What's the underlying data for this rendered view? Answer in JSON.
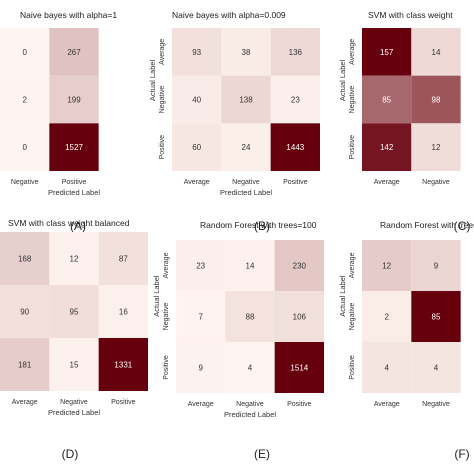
{
  "chart_data": [
    {
      "type": "heatmap",
      "title": "Naive bayes with alpha=1",
      "xticklabels": [
        "Negative",
        "Positive"
      ],
      "yticklabels": [],
      "xlabel": "Predicted Label",
      "ylabel": "",
      "visible_columns": 2,
      "values": [
        [
          0,
          267
        ],
        [
          2,
          199
        ],
        [
          0,
          1527
        ]
      ],
      "panel_label": "(A)"
    },
    {
      "type": "heatmap",
      "title": "Naive bayes with alpha=0.009",
      "xticklabels": [
        "Average",
        "Negative",
        "Positive"
      ],
      "yticklabels": [
        "Average",
        "Negative",
        "Positive"
      ],
      "xlabel": "Predicted Label",
      "ylabel": "Actual Label",
      "visible_columns": 3,
      "values": [
        [
          93,
          38,
          136
        ],
        [
          40,
          138,
          23
        ],
        [
          60,
          24,
          1443
        ]
      ],
      "panel_label": "(B)"
    },
    {
      "type": "heatmap",
      "title": "SVM with class weight",
      "xticklabels": [
        "Average",
        "Negative"
      ],
      "yticklabels": [
        "Average",
        "Negative",
        "Positive"
      ],
      "xlabel": "",
      "ylabel": "Actual Label",
      "visible_columns": 2,
      "values": [
        [
          157,
          14
        ],
        [
          85,
          98
        ],
        [
          142,
          12
        ]
      ],
      "panel_label": "(C)"
    },
    {
      "type": "heatmap",
      "title": "SVM with class weight balanced",
      "xticklabels": [
        "Average",
        "Negative",
        "Positive"
      ],
      "yticklabels": [],
      "xlabel": "Predicted Label",
      "ylabel": "",
      "visible_columns": 3,
      "values": [
        [
          168,
          12,
          87
        ],
        [
          90,
          95,
          16
        ],
        [
          181,
          15,
          1331
        ]
      ],
      "panel_label": "(D)"
    },
    {
      "type": "heatmap",
      "title": "Random Forest with trees=100",
      "xticklabels": [
        "Average",
        "Negative",
        "Positive"
      ],
      "yticklabels": [
        "Average",
        "Negative",
        "Positive"
      ],
      "xlabel": "Predicted Label",
      "ylabel": "Actual Label",
      "visible_columns": 3,
      "values": [
        [
          23,
          14,
          230
        ],
        [
          7,
          88,
          106
        ],
        [
          9,
          4,
          1514
        ]
      ],
      "panel_label": "(E)"
    },
    {
      "type": "heatmap",
      "title": "Random Forest with trees",
      "xticklabels": [
        "Average",
        "Negative"
      ],
      "yticklabels": [
        "Average",
        "Negative",
        "Positive"
      ],
      "xlabel": "",
      "ylabel": "Actual Label",
      "visible_columns": 2,
      "values": [
        [
          12,
          9
        ],
        [
          2,
          85
        ],
        [
          4,
          4
        ]
      ],
      "panel_label": "(F)"
    }
  ],
  "colors": {
    "low": "#fff5f0",
    "high": "#67000d"
  }
}
